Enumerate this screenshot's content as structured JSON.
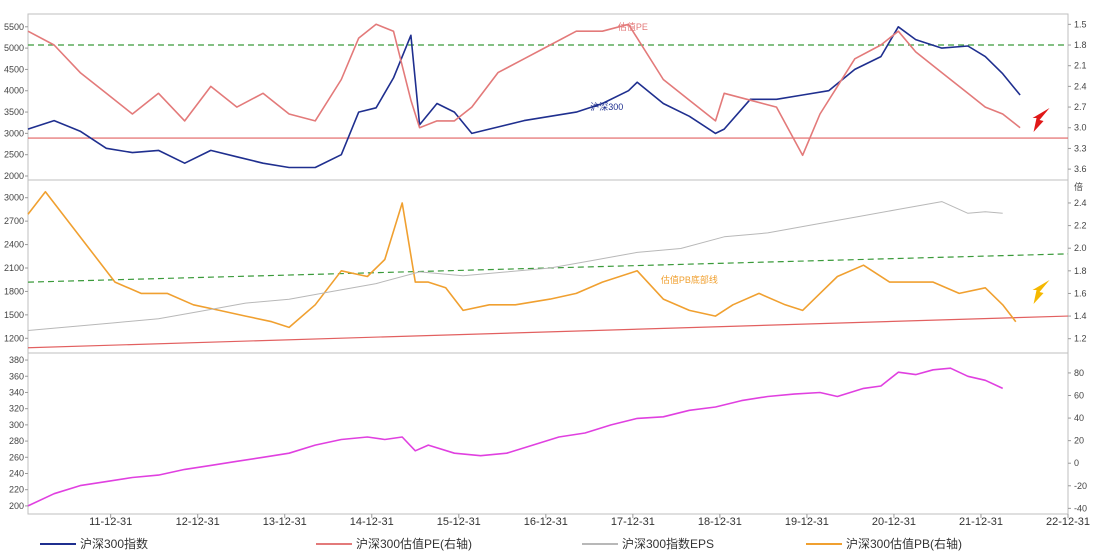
{
  "chart_data": [
    {
      "type": "line",
      "panel": "top",
      "left_axis": {
        "ticks": [
          2000,
          2500,
          3000,
          3500,
          4000,
          4500,
          5000,
          5500
        ],
        "range": [
          2000,
          5800
        ]
      },
      "right_axis": {
        "ticks": [
          "1.5",
          "1.8",
          "2.1",
          "2.4",
          "2.7",
          "3.0",
          "3.3",
          "3.6"
        ],
        "inverted": true,
        "range": [
          1.35,
          3.7
        ]
      },
      "annotations": [
        "估值PE",
        "沪深300"
      ],
      "series": [
        {
          "name": "沪深300指数",
          "axis": "left",
          "color": "#1f2f8f",
          "x": [
            2011.0,
            2011.3,
            2011.6,
            2011.9,
            2012.2,
            2012.5,
            2012.8,
            2013.1,
            2013.4,
            2013.7,
            2014.0,
            2014.3,
            2014.6,
            2014.8,
            2015.0,
            2015.2,
            2015.4,
            2015.5,
            2015.7,
            2015.9,
            2016.1,
            2016.4,
            2016.7,
            2017.0,
            2017.3,
            2017.6,
            2017.9,
            2018.0,
            2018.3,
            2018.6,
            2018.9,
            2019.0,
            2019.3,
            2019.6,
            2019.9,
            2020.2,
            2020.5,
            2020.8,
            2021.0,
            2021.2,
            2021.5,
            2021.8,
            2022.0,
            2022.2,
            2022.4
          ],
          "y": [
            3100,
            3300,
            3050,
            2650,
            2550,
            2600,
            2300,
            2600,
            2450,
            2300,
            2200,
            2200,
            2500,
            3500,
            3600,
            4300,
            5300,
            3200,
            3700,
            3500,
            3000,
            3150,
            3300,
            3400,
            3500,
            3700,
            4000,
            4200,
            3700,
            3400,
            3000,
            3100,
            3800,
            3800,
            3900,
            4000,
            4500,
            4800,
            5500,
            5200,
            5000,
            5050,
            4800,
            4400,
            3900
          ]
        },
        {
          "name": "沪深300估值PE(右轴)",
          "axis": "right",
          "color": "#e37a7a",
          "x": [
            2011.0,
            2011.3,
            2011.6,
            2011.9,
            2012.2,
            2012.5,
            2012.8,
            2013.1,
            2013.4,
            2013.7,
            2014.0,
            2014.3,
            2014.6,
            2014.8,
            2015.0,
            2015.2,
            2015.4,
            2015.5,
            2015.7,
            2015.9,
            2016.1,
            2016.4,
            2016.7,
            2017.0,
            2017.3,
            2017.6,
            2017.9,
            2018.0,
            2018.3,
            2018.6,
            2018.9,
            2019.0,
            2019.3,
            2019.6,
            2019.9,
            2020.1,
            2020.3,
            2020.5,
            2020.8,
            2021.0,
            2021.2,
            2021.5,
            2021.8,
            2022.0,
            2022.2,
            2022.4
          ],
          "y": [
            1.6,
            1.8,
            2.2,
            2.5,
            2.8,
            2.5,
            2.9,
            2.4,
            2.7,
            2.5,
            2.8,
            2.9,
            2.3,
            1.7,
            1.5,
            1.6,
            2.6,
            3.0,
            2.9,
            2.9,
            2.7,
            2.2,
            2.0,
            1.8,
            1.6,
            1.6,
            1.5,
            1.7,
            2.3,
            2.6,
            2.9,
            2.5,
            2.6,
            2.7,
            3.4,
            2.8,
            2.4,
            2.0,
            1.8,
            1.6,
            1.9,
            2.2,
            2.5,
            2.7,
            2.8,
            3.0
          ]
        }
      ],
      "reference_lines": [
        {
          "axis": "right",
          "value": 1.8,
          "style": "dashed",
          "color": "#3a9a3a"
        },
        {
          "axis": "right",
          "value": 3.15,
          "style": "solid",
          "color": "#e26060"
        }
      ],
      "arrow": {
        "color": "#e01818",
        "x": 2022.6
      }
    },
    {
      "type": "line",
      "panel": "middle",
      "left_axis": {
        "ticks": [
          1200,
          1500,
          1800,
          2100,
          2400,
          2700,
          3000
        ],
        "range": [
          1050,
          3150
        ]
      },
      "right_axis": {
        "ticks": [
          "1.2",
          "1.4",
          "1.6",
          "1.8",
          "2.0",
          "2.2",
          "2.4"
        ],
        "range": [
          1.1,
          2.55
        ],
        "label": "倍"
      },
      "annotations": [
        "估值PB底部线"
      ],
      "series": [
        {
          "name": "沪深300估值PB(右轴)",
          "axis": "right",
          "color": "#f0a030",
          "x": [
            2011.0,
            2011.2,
            2011.5,
            2011.8,
            2012.0,
            2012.3,
            2012.6,
            2012.9,
            2013.2,
            2013.5,
            2013.8,
            2014.0,
            2014.3,
            2014.6,
            2014.9,
            2015.1,
            2015.3,
            2015.45,
            2015.6,
            2015.8,
            2016.0,
            2016.3,
            2016.6,
            2017.0,
            2017.3,
            2017.6,
            2018.0,
            2018.3,
            2018.6,
            2018.9,
            2019.1,
            2019.4,
            2019.7,
            2019.9,
            2020.1,
            2020.3,
            2020.6,
            2020.9,
            2021.1,
            2021.4,
            2021.7,
            2022.0,
            2022.2,
            2022.35
          ],
          "y": [
            2.3,
            2.5,
            2.2,
            1.9,
            1.7,
            1.6,
            1.6,
            1.5,
            1.45,
            1.4,
            1.35,
            1.3,
            1.5,
            1.8,
            1.75,
            1.9,
            2.4,
            1.7,
            1.7,
            1.65,
            1.45,
            1.5,
            1.5,
            1.55,
            1.6,
            1.7,
            1.8,
            1.55,
            1.45,
            1.4,
            1.5,
            1.6,
            1.5,
            1.45,
            1.6,
            1.75,
            1.85,
            1.7,
            1.7,
            1.7,
            1.6,
            1.65,
            1.5,
            1.35
          ]
        },
        {
          "name": "沪深300指数EPS",
          "axis": "left",
          "color": "#b8b8b8",
          "x": [
            2011.0,
            2011.5,
            2012.0,
            2012.5,
            2013.0,
            2013.5,
            2014.0,
            2014.5,
            2015.0,
            2015.5,
            2016.0,
            2016.5,
            2017.0,
            2017.5,
            2018.0,
            2018.5,
            2019.0,
            2019.5,
            2020.0,
            2020.5,
            2021.0,
            2021.5,
            2021.8,
            2022.0,
            2022.2
          ],
          "y": [
            1300,
            1350,
            1400,
            1450,
            1550,
            1650,
            1700,
            1800,
            1900,
            2050,
            2000,
            2050,
            2100,
            2200,
            2300,
            2350,
            2500,
            2550,
            2650,
            2750,
            2850,
            2950,
            2800,
            2820,
            2800
          ]
        }
      ],
      "reference_lines": [
        {
          "axis": "right",
          "from": 1.7,
          "to": 1.95,
          "style": "dashed",
          "color": "#3a9a3a"
        },
        {
          "axis": "right",
          "from": 1.12,
          "to": 1.4,
          "style": "solid",
          "color": "#e26060"
        }
      ],
      "arrow": {
        "color": "#f5b800",
        "x": 2022.6
      }
    },
    {
      "type": "line",
      "panel": "bottom",
      "left_axis": {
        "ticks": [
          200,
          220,
          240,
          260,
          280,
          300,
          320,
          340,
          360,
          380
        ],
        "range": [
          190,
          385
        ]
      },
      "right_axis": {
        "ticks": [
          "-40",
          "-20",
          "0",
          "20",
          "40",
          "60",
          "80"
        ],
        "range": [
          -45,
          95
        ]
      },
      "series": [
        {
          "name": "",
          "axis": "left",
          "color": "#e040e0",
          "x": [
            2011.0,
            2011.3,
            2011.6,
            2011.9,
            2012.2,
            2012.5,
            2012.8,
            2013.1,
            2013.4,
            2013.7,
            2014.0,
            2014.3,
            2014.6,
            2014.9,
            2015.1,
            2015.3,
            2015.45,
            2015.6,
            2015.9,
            2016.2,
            2016.5,
            2016.8,
            2017.1,
            2017.4,
            2017.7,
            2018.0,
            2018.3,
            2018.6,
            2018.9,
            2019.2,
            2019.5,
            2019.8,
            2020.1,
            2020.3,
            2020.6,
            2020.8,
            2021.0,
            2021.2,
            2021.4,
            2021.6,
            2021.8,
            2022.0,
            2022.2
          ],
          "y": [
            200,
            215,
            225,
            230,
            235,
            238,
            245,
            250,
            255,
            260,
            265,
            275,
            282,
            285,
            282,
            285,
            268,
            275,
            265,
            262,
            265,
            275,
            285,
            290,
            300,
            308,
            310,
            318,
            322,
            330,
            335,
            338,
            340,
            335,
            345,
            348,
            365,
            362,
            368,
            370,
            360,
            355,
            345
          ]
        }
      ]
    }
  ],
  "x_axis": {
    "ticks": [
      "11-12-31",
      "12-12-31",
      "13-12-31",
      "14-12-31",
      "15-12-31",
      "16-12-31",
      "17-12-31",
      "18-12-31",
      "19-12-31",
      "20-12-31",
      "21-12-31",
      "22-12-31"
    ]
  },
  "legend": [
    {
      "label": "沪深300指数",
      "color": "#1f2f8f"
    },
    {
      "label": "沪深300估值PE(右轴)",
      "color": "#e37a7a"
    },
    {
      "label": "沪深300指数EPS",
      "color": "#b8b8b8"
    },
    {
      "label": "沪深300估值PB(右轴)",
      "color": "#f0a030"
    }
  ],
  "colors": {
    "frame": "#bfbfbf",
    "background": "#ffffff"
  }
}
